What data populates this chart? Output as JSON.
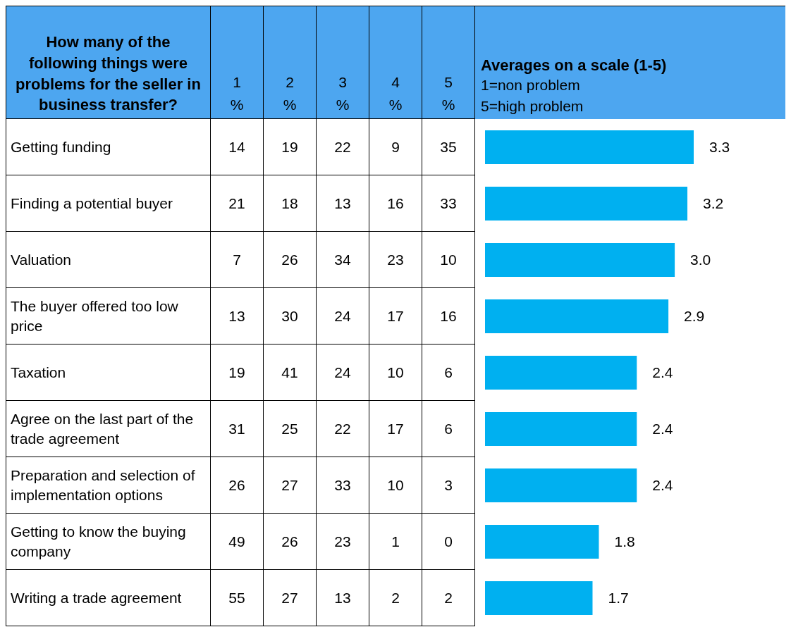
{
  "chart_data": [
    {
      "type": "heatmap",
      "title": "How many of the following things were problems for the seller in business transfer?",
      "categories": [
        "1 %",
        "2 %",
        "3 %",
        "4 %",
        "5 %"
      ],
      "y_categories": [
        "Getting funding",
        "Finding a potential buyer",
        "Valuation",
        "The buyer offered too low price",
        "Taxation",
        "Agree on the last part of the trade agreement",
        "Preparation and selection of implementation options",
        "Getting to know the buying company",
        "Writing a trade agreement"
      ],
      "cells": [
        [
          14,
          19,
          22,
          9,
          35
        ],
        [
          21,
          18,
          13,
          16,
          33
        ],
        [
          7,
          26,
          34,
          23,
          10
        ],
        [
          13,
          30,
          24,
          17,
          16
        ],
        [
          19,
          41,
          24,
          10,
          6
        ],
        [
          31,
          25,
          22,
          17,
          6
        ],
        [
          26,
          27,
          33,
          10,
          3
        ],
        [
          49,
          26,
          23,
          1,
          0
        ],
        [
          55,
          27,
          13,
          2,
          2
        ]
      ],
      "data_labels": true
    },
    {
      "type": "bar",
      "orientation": "horizontal",
      "title": "Averages on a scale (1-5)",
      "annotations": [
        "1=non problem",
        "5=high problem"
      ],
      "categories": [
        null,
        null,
        null,
        null,
        null,
        null,
        null,
        null,
        null
      ],
      "values": [
        3.3,
        3.2,
        3.0,
        2.9,
        2.4,
        2.4,
        2.4,
        1.8,
        1.7
      ],
      "value_labels": [
        "3.3",
        "3.2",
        "3.0",
        "2.9",
        "2.4",
        "2.4",
        "2.4",
        "1.8",
        "1.7"
      ],
      "color": "#00b0f0",
      "tick_labels": false
    }
  ]
}
